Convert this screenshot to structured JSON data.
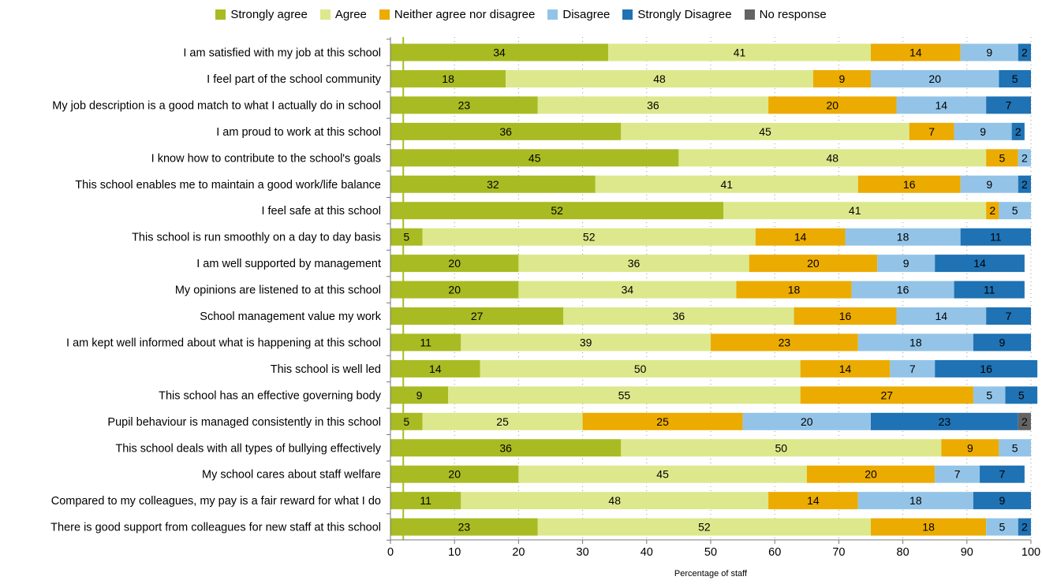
{
  "chart_data": {
    "type": "bar",
    "orientation": "horizontal",
    "stacked": true,
    "xlabel": "Percentage of staff",
    "xlim": [
      0,
      100
    ],
    "xticks": [
      0,
      10,
      20,
      30,
      40,
      50,
      60,
      70,
      80,
      90,
      100
    ],
    "grid": "vertical dotted",
    "legend_position": "top",
    "reference_line_x": 2,
    "categories": [
      "I am satisfied with my job at this school",
      "I feel part of the school community",
      "My job description is a good match to what I actually do in school",
      "I am proud to work at this school",
      "I know how to contribute to the school's goals",
      "This school enables me to maintain a good work/life balance",
      "I feel safe at this school",
      "This school is run smoothly on a day to day basis",
      "I am well supported by management",
      "My opinions are listened to at this school",
      "School management value my work",
      "I am kept well informed about what is happening at this school",
      "This school is well led",
      "This school has an effective governing body",
      "Pupil behaviour is managed consistently in this school",
      "This school deals with all types of bullying effectively",
      "My school cares about staff welfare",
      "Compared to my colleagues, my pay is a fair reward for what I do",
      "There is good support from colleagues for new staff at this school"
    ],
    "series": [
      {
        "name": "Strongly agree",
        "color": "#a9bb22",
        "values": [
          34,
          18,
          23,
          36,
          45,
          32,
          52,
          5,
          20,
          20,
          27,
          11,
          14,
          9,
          5,
          36,
          20,
          11,
          23
        ]
      },
      {
        "name": "Agree",
        "color": "#dde88c",
        "values": [
          41,
          48,
          36,
          45,
          48,
          41,
          41,
          52,
          36,
          34,
          36,
          39,
          50,
          55,
          25,
          50,
          45,
          48,
          52
        ]
      },
      {
        "name": "Neither agree nor disagree",
        "color": "#ecab00",
        "values": [
          14,
          9,
          20,
          7,
          5,
          16,
          2,
          14,
          20,
          18,
          16,
          23,
          14,
          27,
          25,
          9,
          20,
          14,
          18
        ]
      },
      {
        "name": "Disagree",
        "color": "#93c4e8",
        "values": [
          9,
          20,
          14,
          9,
          2,
          9,
          5,
          18,
          9,
          16,
          14,
          18,
          7,
          5,
          20,
          5,
          7,
          18,
          5
        ]
      },
      {
        "name": "Strongly Disagree",
        "color": "#1f72b3",
        "values": [
          2,
          5,
          7,
          2,
          0,
          2,
          0,
          11,
          14,
          11,
          7,
          9,
          16,
          5,
          23,
          0,
          7,
          9,
          2
        ]
      },
      {
        "name": "No response",
        "color": "#646464",
        "values": [
          0,
          0,
          0,
          0,
          0,
          0,
          0,
          0,
          0,
          0,
          0,
          0,
          0,
          0,
          2,
          0,
          0,
          0,
          0
        ]
      }
    ]
  }
}
